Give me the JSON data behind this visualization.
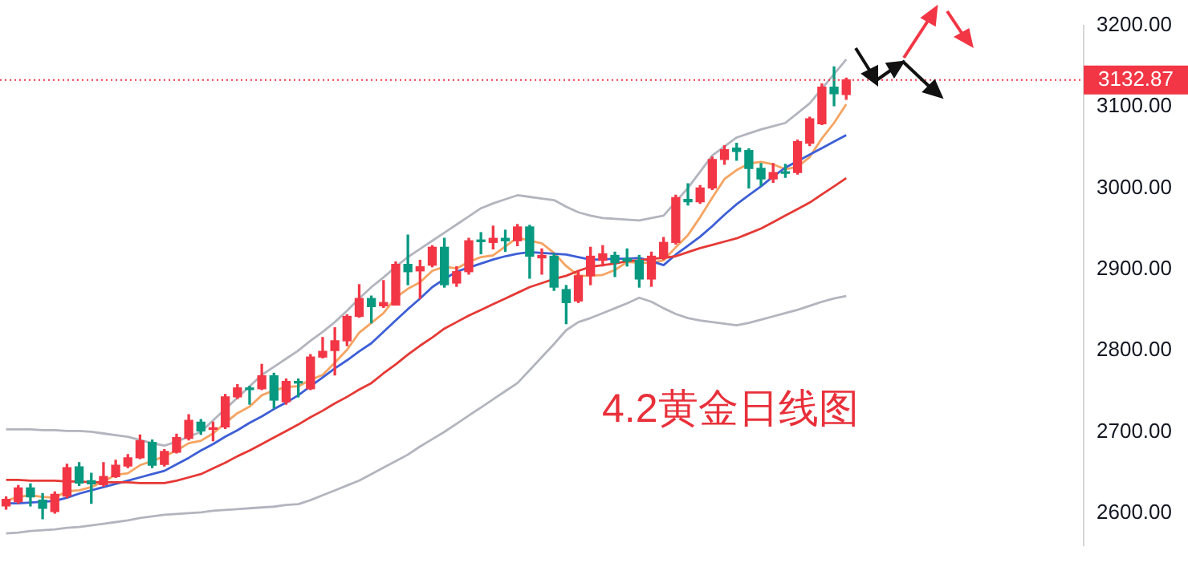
{
  "chart_data": {
    "type": "candlestick",
    "annotations": [
      "4.2黄金日线图"
    ],
    "categories": [
      null,
      null,
      null,
      null,
      null,
      null,
      null,
      null,
      null,
      null,
      null,
      null,
      null,
      null,
      null,
      null,
      null,
      null,
      null,
      null,
      null,
      null,
      null,
      null,
      null,
      null,
      null,
      null,
      null,
      null,
      null,
      null,
      null,
      null,
      null,
      null,
      null,
      null,
      null,
      null,
      null,
      null,
      null,
      null,
      null,
      null,
      null,
      null,
      null,
      null,
      null,
      null,
      null,
      null,
      null,
      null,
      null,
      null,
      null,
      null,
      null,
      null,
      null,
      null,
      null,
      null,
      null,
      null,
      null,
      null,
      null,
      null,
      null,
      null,
      null,
      null,
      null,
      null,
      null,
      null,
      null,
      null,
      null,
      null,
      null,
      null,
      null,
      null,
      null
    ],
    "ohlc": [
      [
        2609,
        2620,
        2605,
        2617
      ],
      [
        2614,
        2634,
        2612,
        2631
      ],
      [
        2631,
        2636,
        2609,
        2620
      ],
      [
        2616,
        2624,
        2593,
        2606
      ],
      [
        2602,
        2626,
        2600,
        2623
      ],
      [
        2621,
        2660,
        2619,
        2656
      ],
      [
        2657,
        2662,
        2634,
        2637
      ],
      [
        2640,
        2649,
        2612,
        2636
      ],
      [
        2635,
        2662,
        2633,
        2645
      ],
      [
        2645,
        2665,
        2644,
        2659
      ],
      [
        2658,
        2672,
        2656,
        2668
      ],
      [
        2668,
        2696,
        2667,
        2689
      ],
      [
        2687,
        2690,
        2656,
        2659
      ],
      [
        2660,
        2678,
        2658,
        2676
      ],
      [
        2675,
        2697,
        2674,
        2693
      ],
      [
        2692,
        2721,
        2690,
        2714
      ],
      [
        2712,
        2715,
        2697,
        2701
      ],
      [
        2703,
        2712,
        2689,
        2705
      ],
      [
        2706,
        2746,
        2704,
        2743
      ],
      [
        2743,
        2758,
        2741,
        2754
      ],
      [
        2754,
        2756,
        2734,
        2752
      ],
      [
        2753,
        2783,
        2752,
        2769
      ],
      [
        2769,
        2772,
        2729,
        2739
      ],
      [
        2737,
        2765,
        2734,
        2762
      ],
      [
        2762,
        2765,
        2743,
        2760
      ],
      [
        2753,
        2795,
        2752,
        2792
      ],
      [
        2792,
        2816,
        2791,
        2799
      ],
      [
        2800,
        2828,
        2770,
        2812
      ],
      [
        2812,
        2844,
        2806,
        2842
      ],
      [
        2842,
        2881,
        2841,
        2864
      ],
      [
        2864,
        2867,
        2834,
        2854
      ],
      [
        2855,
        2886,
        2853,
        2859
      ],
      [
        2856,
        2909,
        2856,
        2906
      ],
      [
        2906,
        2942,
        2881,
        2897
      ],
      [
        2898,
        2911,
        2864,
        2903
      ],
      [
        2905,
        2929,
        2903,
        2927
      ],
      [
        2927,
        2938,
        2878,
        2881
      ],
      [
        2883,
        2903,
        2879,
        2897
      ],
      [
        2897,
        2938,
        2894,
        2935
      ],
      [
        2936,
        2945,
        2919,
        2934
      ],
      [
        2933,
        2953,
        2925,
        2938
      ],
      [
        2938,
        2948,
        2922,
        2935
      ],
      [
        2935,
        2955,
        2929,
        2952
      ],
      [
        2952,
        2954,
        2889,
        2916
      ],
      [
        2914,
        2925,
        2894,
        2917
      ],
      [
        2916,
        2919,
        2874,
        2878
      ],
      [
        2875,
        2880,
        2833,
        2859
      ],
      [
        2861,
        2897,
        2859,
        2892
      ],
      [
        2892,
        2927,
        2881,
        2916
      ],
      [
        2911,
        2929,
        2904,
        2919
      ],
      [
        2917,
        2921,
        2891,
        2908
      ],
      [
        2913,
        2925,
        2904,
        2910
      ],
      [
        2911,
        2917,
        2878,
        2888
      ],
      [
        2888,
        2921,
        2879,
        2916
      ],
      [
        2914,
        2939,
        2912,
        2933
      ],
      [
        2933,
        2991,
        2931,
        2988
      ],
      [
        2986,
        3005,
        2979,
        2983
      ],
      [
        2983,
        3003,
        2981,
        3000
      ],
      [
        3000,
        3038,
        2998,
        3035
      ],
      [
        3035,
        3052,
        3029,
        3047
      ],
      [
        3049,
        3055,
        3034,
        3045
      ],
      [
        3046,
        3048,
        3000,
        3024
      ],
      [
        3024,
        3030,
        3003,
        3011
      ],
      [
        3011,
        3030,
        3007,
        3019
      ],
      [
        3020,
        3029,
        3013,
        3018
      ],
      [
        3019,
        3059,
        3017,
        3057
      ],
      [
        3055,
        3087,
        3052,
        3085
      ],
      [
        3079,
        3128,
        3078,
        3124
      ],
      [
        3124,
        3149,
        3101,
        3116
      ],
      [
        3115,
        3135,
        3109,
        3132.87
      ],
      null,
      null,
      null,
      null,
      null,
      null,
      null,
      null,
      null,
      null,
      null,
      null,
      null,
      null,
      null,
      null,
      null,
      null,
      null
    ],
    "colors": [
      "#f23645",
      "#f23645",
      "#089981",
      "#089981",
      "#f23645",
      "#f23645",
      "#089981",
      "#089981",
      "#f23645",
      "#f23645",
      "#f23645",
      "#f23645",
      "#089981",
      "#f23645",
      "#f23645",
      "#f23645",
      "#089981",
      "#f23645",
      "#f23645",
      "#f23645",
      "#089981",
      "#f23645",
      "#089981",
      "#f23645",
      "#089981",
      "#f23645",
      "#f23645",
      "#f23645",
      "#f23645",
      "#f23645",
      "#089981",
      "#f23645",
      "#f23645",
      "#089981",
      "#f23645",
      "#f23645",
      "#089981",
      "#f23645",
      "#f23645",
      "#089981",
      "#f23645",
      "#089981",
      "#f23645",
      "#089981",
      "#f23645",
      "#089981",
      "#089981",
      "#f23645",
      "#f23645",
      "#f23645",
      "#089981",
      "#089981",
      "#089981",
      "#f23645",
      "#f23645",
      "#f23645",
      "#089981",
      "#f23645",
      "#f23645",
      "#f23645",
      "#089981",
      "#089981",
      "#089981",
      "#f23645",
      "#089981",
      "#f23645",
      "#f23645",
      "#f23645",
      "#089981",
      "#f23645",
      null,
      null,
      null,
      null,
      null,
      null,
      null,
      null,
      null,
      null,
      null,
      null,
      null,
      null,
      null,
      null,
      null,
      null,
      null
    ],
    "series": [
      {
        "type": "line",
        "color": "#b2b5be",
        "values": [
          2703,
          2703,
          2703,
          2702,
          2702,
          2701,
          2701,
          2700,
          2698,
          2696,
          2694,
          2690,
          2686,
          2683,
          2688,
          2694,
          2700,
          2714,
          2728,
          2742,
          2756,
          2770,
          2780,
          2790,
          2800,
          2812,
          2823,
          2835,
          2849,
          2864,
          2878,
          2890,
          2903,
          2915,
          2925,
          2935,
          2945,
          2955,
          2965,
          2975,
          2981,
          2986,
          2991,
          2989,
          2987,
          2985,
          2977,
          2970,
          2966,
          2963,
          2962,
          2961,
          2960,
          2963,
          2966,
          2983,
          3000,
          3020,
          3040,
          3051,
          3062,
          3067,
          3072,
          3076,
          3080,
          3092,
          3104,
          3122,
          3140,
          3158,
          null,
          null,
          null,
          null,
          null,
          null,
          null,
          null,
          null,
          null,
          null,
          null,
          null,
          null,
          null,
          null,
          null,
          null,
          null
        ]
      },
      {
        "type": "line",
        "color": "#b2b5be",
        "values": [
          2575,
          2576,
          2578,
          2579,
          2580,
          2582,
          2583,
          2585,
          2587,
          2589,
          2591,
          2594,
          2596,
          2598,
          2599,
          2600,
          2601,
          2603,
          2604,
          2605,
          2606,
          2607,
          2608,
          2610,
          2611,
          2616,
          2622,
          2628,
          2634,
          2640,
          2648,
          2656,
          2664,
          2672,
          2682,
          2691,
          2700,
          2710,
          2720,
          2730,
          2740,
          2750,
          2760,
          2776,
          2792,
          2808,
          2825,
          2835,
          2840,
          2846,
          2852,
          2858,
          2865,
          2860,
          2852,
          2845,
          2840,
          2837,
          2835,
          2833,
          2831,
          2834,
          2838,
          2842,
          2846,
          2850,
          2855,
          2860,
          2864,
          2867,
          null,
          null,
          null,
          null,
          null,
          null,
          null,
          null,
          null,
          null,
          null,
          null,
          null,
          null,
          null,
          null,
          null,
          null,
          null
        ]
      },
      {
        "type": "line",
        "color": "#e53935",
        "values": [
          2641,
          2641,
          2640,
          2640,
          2640,
          2639,
          2639,
          2638,
          2638,
          2638,
          2638,
          2637,
          2637,
          2637,
          2640,
          2644,
          2648,
          2655,
          2662,
          2670,
          2677,
          2685,
          2693,
          2701,
          2709,
          2718,
          2726,
          2735,
          2743,
          2752,
          2760,
          2772,
          2783,
          2795,
          2806,
          2816,
          2827,
          2835,
          2843,
          2850,
          2857,
          2864,
          2871,
          2878,
          2883,
          2888,
          2892,
          2898,
          2903,
          2905,
          2907,
          2910,
          2911,
          2913,
          2914,
          2916,
          2921,
          2926,
          2930,
          2934,
          2938,
          2944,
          2950,
          2958,
          2966,
          2974,
          2982,
          2992,
          3002,
          3012,
          null,
          null,
          null,
          null,
          null,
          null,
          null,
          null,
          null,
          null,
          null,
          null,
          null,
          null,
          null,
          null,
          null,
          null,
          null
        ]
      },
      {
        "type": "line",
        "color": "#3d5fd6",
        "values": [
          2612,
          2612,
          2613,
          2614,
          2615,
          2619,
          2624,
          2628,
          2632,
          2636,
          2640,
          2644,
          2648,
          2652,
          2660,
          2668,
          2677,
          2685,
          2694,
          2702,
          2711,
          2719,
          2728,
          2736,
          2745,
          2756,
          2767,
          2778,
          2788,
          2799,
          2809,
          2823,
          2837,
          2851,
          2864,
          2878,
          2888,
          2897,
          2902,
          2907,
          2912,
          2916,
          2919,
          2921,
          2920,
          2919,
          2918,
          2915,
          2912,
          2912,
          2913,
          2913,
          2914,
          2910,
          2905,
          2918,
          2929,
          2940,
          2953,
          2967,
          2980,
          2991,
          3002,
          3014,
          3025,
          3033,
          3041,
          3049,
          3057,
          3065,
          null,
          null,
          null,
          null,
          null,
          null,
          null,
          null,
          null,
          null,
          null,
          null,
          null,
          null,
          null,
          null,
          null,
          null,
          null
        ]
      },
      {
        "type": "line",
        "color": "#f5a462",
        "values": [
          2615,
          2620,
          2622,
          2620,
          2619,
          2627,
          2628,
          2632,
          2639,
          2647,
          2649,
          2659,
          2664,
          2670,
          2677,
          2686,
          2689,
          2698,
          2711,
          2723,
          2731,
          2745,
          2751,
          2755,
          2756,
          2764,
          2770,
          2785,
          2801,
          2822,
          2834,
          2846,
          2865,
          2876,
          2884,
          2898,
          2903,
          2901,
          2909,
          2915,
          2917,
          2928,
          2939,
          2935,
          2932,
          2920,
          2904,
          2892,
          2892,
          2893,
          2899,
          2909,
          2908,
          2908,
          2911,
          2927,
          2942,
          2964,
          2988,
          3011,
          3022,
          3030,
          3032,
          3029,
          3023,
          3026,
          3038,
          3061,
          3080,
          3103,
          null,
          null,
          null,
          null,
          null,
          null,
          null,
          null,
          null,
          null,
          null,
          null,
          null,
          null,
          null,
          null,
          null,
          null,
          null
        ]
      }
    ],
    "ylim": [
      2560,
      3200
    ],
    "yticks": [
      {
        "value": 2600,
        "label": "2600.00"
      },
      {
        "value": 2700,
        "label": "2700.00"
      },
      {
        "value": 2800,
        "label": "2800.00"
      },
      {
        "value": 2900,
        "label": "2900.00"
      },
      {
        "value": 3000,
        "label": "3000.00"
      },
      {
        "value": 3100,
        "label": "3100.00"
      },
      {
        "value": 3200,
        "label": "3200.00"
      }
    ],
    "tick_labels": "y",
    "ref_lines": [
      {
        "axis": "y",
        "value": 3132.87,
        "label": "3132.87",
        "color": "#f23645",
        "line_style": "dotted"
      }
    ]
  }
}
